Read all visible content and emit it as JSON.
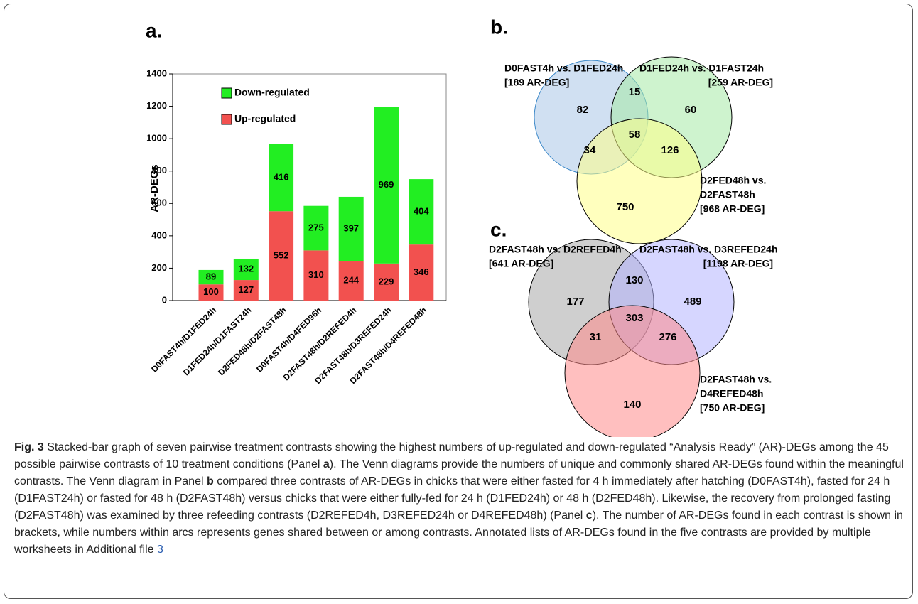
{
  "chart_data": {
    "type": "bar",
    "stacked": true,
    "panel_label": "a.",
    "ylabel": "AR-DEGs",
    "categories": [
      "D0FAST4h/D1FED24h",
      "D1FED24h/D1FAST24h",
      "D2FED48h/D2FAST48h",
      "D0FAST4h/D4FED96h",
      "D2FAST48h/D2REFED4h",
      "D2FAST48h/D3REFED24h",
      "D2FAST48h/D4REFED48h"
    ],
    "series": [
      {
        "name": "Up-regulated",
        "color": "#f2514f",
        "values": [
          100,
          127,
          552,
          310,
          244,
          229,
          346
        ]
      },
      {
        "name": "Down-regulated",
        "color": "#22ee22",
        "values": [
          89,
          132,
          416,
          275,
          397,
          969,
          404
        ]
      }
    ],
    "ylim": [
      0,
      1400
    ],
    "yticks": [
      0,
      200,
      400,
      600,
      800,
      1000,
      1200,
      1400
    ],
    "legend": "upper left"
  },
  "venn_b": {
    "panel_label": "b.",
    "sets": [
      {
        "lines": [
          "D0FAST4h vs. D1FED24h",
          "[189 AR-DEG]"
        ]
      },
      {
        "lines": [
          "D1FED24h vs. D1FAST24h",
          "[259 AR-DEG]"
        ]
      },
      {
        "lines": [
          "D2FED48h vs.",
          "D2FAST48h",
          "[968 AR-DEG]"
        ]
      }
    ],
    "regions": [
      "82",
      "15",
      "60",
      "58",
      "34",
      "126",
      "750"
    ]
  },
  "venn_c": {
    "panel_label": "c.",
    "sets": [
      {
        "lines": [
          "D2FAST48h vs. D2REFED4h",
          "[641 AR-DEG]"
        ]
      },
      {
        "lines": [
          "D2FAST48h vs. D3REFED24h",
          "[1198 AR-DEG]"
        ]
      },
      {
        "lines": [
          "D2FAST48h vs.",
          "D4REFED48h",
          "[750 AR-DEG]"
        ]
      }
    ],
    "regions": [
      "177",
      "130",
      "489",
      "303",
      "31",
      "276",
      "140"
    ]
  },
  "caption": [
    "Fig. 3",
    " Stacked-bar graph of seven pairwise treatment contrasts showing the highest numbers of up-regulated and down-regulated “Analysis Ready” (AR)-DEGs among the 45 possible pairwise contrasts of 10 treatment conditions (Panel ",
    "a",
    "). The Venn diagrams provide the numbers of unique and commonly shared AR-DEGs found within the meaningful contrasts. The Venn diagram in Panel ",
    "b",
    " compared three contrasts of AR-DEGs in chicks that were either fasted for 4 h immediately after hatching (D0FAST4h), fasted for 24 h (D1FAST24h) or fasted for 48 h (D2FAST48h) versus chicks that were either fully-fed for 24 h (D1FED24h) or 48 h (D2FED48h). Likewise, the recovery from prolonged fasting (D2FAST48h) was examined by three refeeding contrasts (D2REFED4h, D3REFED24h or D4REFED48h) (Panel ",
    "c",
    "). The number of AR-DEGs found in each contrast is shown in brackets, while numbers within arcs represents genes shared between or among contrasts. Annotated lists of AR-DEGs found in the five contrasts are provided by multiple worksheets in Additional file ",
    "3"
  ]
}
